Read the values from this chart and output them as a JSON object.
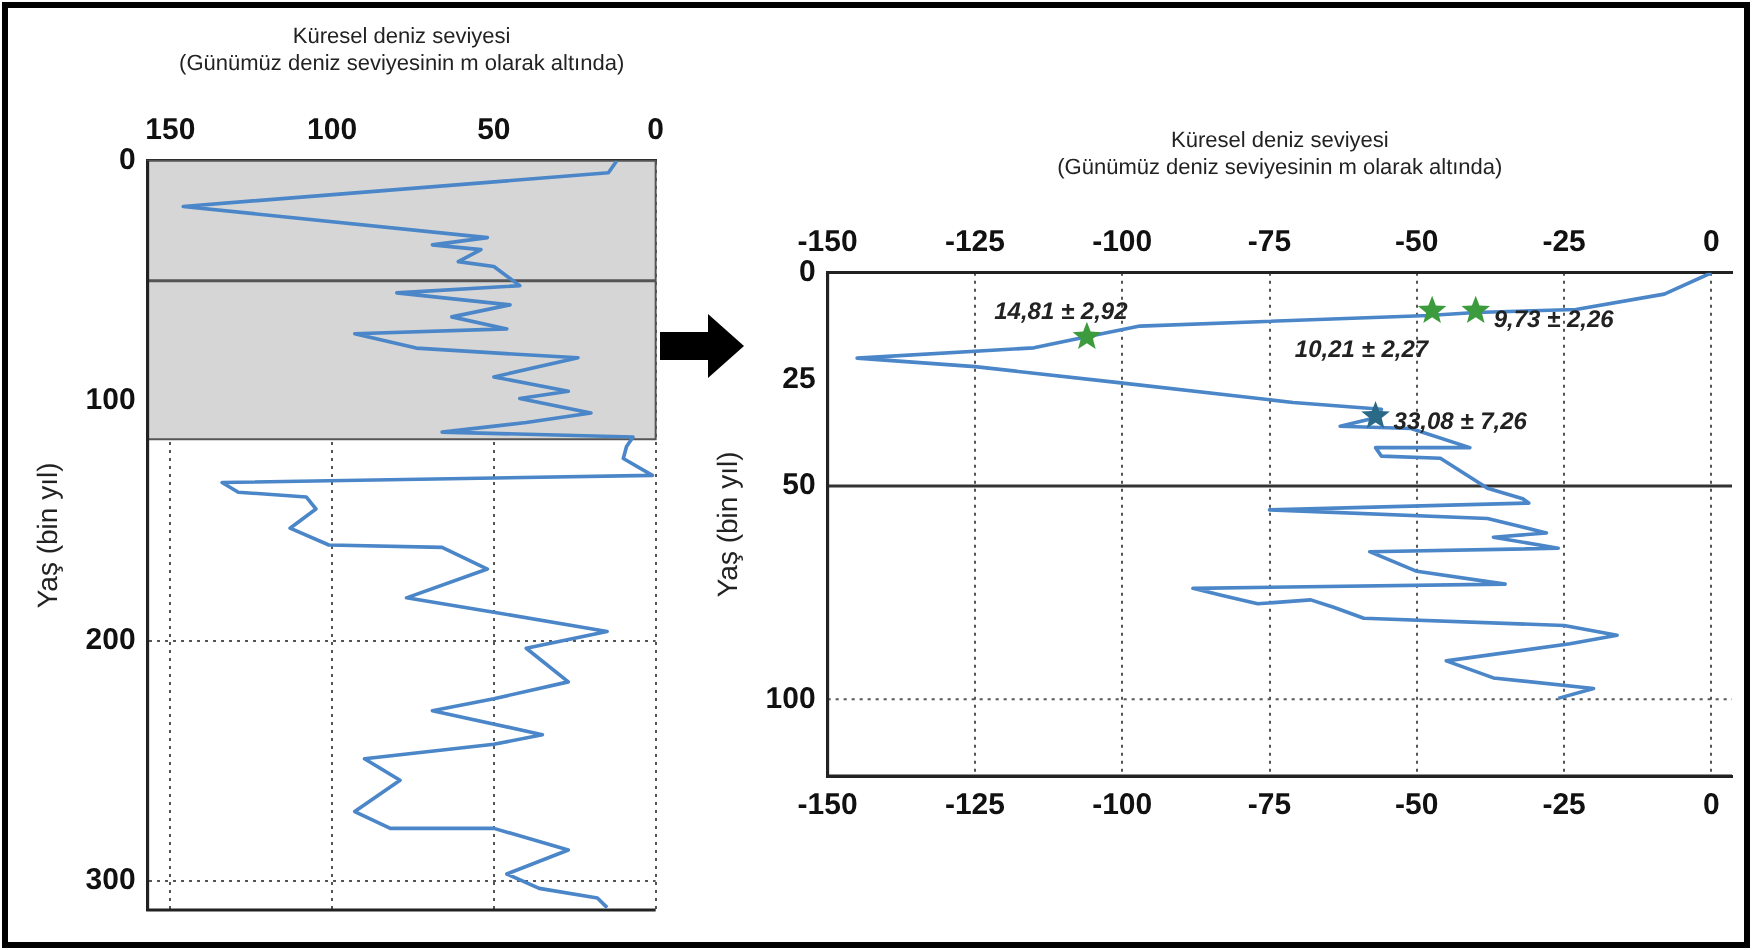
{
  "chart_data": [
    {
      "type": "line",
      "xlabel": "Küresel deniz seviyesi\n(Günümüz deniz seviyesinin m olarak altında)",
      "ylabel": "Yaş (bin yıl)",
      "xlim": [
        157,
        0
      ],
      "xticks": [
        150,
        100,
        50,
        0
      ],
      "ylim": [
        312,
        0
      ],
      "yticks": [
        0,
        100,
        200,
        300
      ],
      "grid": true,
      "marker": "none",
      "line_style": "solid",
      "series": [
        {
          "color": "#4a86c8",
          "x": [
            12,
            14.6,
            146,
            52,
            69,
            54,
            61,
            50,
            42,
            80,
            45,
            63,
            46,
            93,
            74,
            50,
            24,
            50,
            27,
            42,
            20,
            40,
            66,
            7,
            9,
            10,
            1,
            134,
            129,
            108,
            105,
            113,
            101,
            66,
            52,
            77,
            50,
            15,
            40,
            27,
            50,
            69,
            35,
            50,
            90,
            79,
            93,
            82,
            50,
            27,
            46,
            36,
            18,
            15
          ],
          "values": [
            0,
            5,
            19,
            32,
            35,
            37,
            42,
            44,
            52,
            55,
            60,
            65,
            70,
            72,
            78,
            80,
            82,
            90,
            96,
            99,
            105,
            109,
            113,
            115,
            119,
            124,
            131,
            134,
            138,
            140,
            145,
            153,
            160,
            161,
            170,
            182,
            188,
            196,
            203,
            217,
            224,
            229,
            239,
            243,
            249,
            258,
            271,
            278,
            278,
            287,
            297,
            303,
            307,
            311
          ]
        }
      ],
      "bands": [
        {
          "axis": "y",
          "from": 0,
          "to": 116,
          "color": "#d6d6d6"
        }
      ],
      "ref_lines": [
        {
          "axis": "y",
          "value": 50,
          "color": "#555555",
          "line_style": "solid"
        }
      ]
    },
    {
      "type": "line",
      "x2label": "Küresel deniz seviyesi\n(Günümüz deniz seviyesinin m olarak altında)",
      "ylabel": "Yaş (bin yıl)",
      "xlim": [
        -150,
        3.5
      ],
      "xticks": [
        -150,
        -125,
        -100,
        -75,
        -50,
        -25,
        0
      ],
      "x2lim": [
        -150,
        3.5
      ],
      "x2ticks": [
        -150,
        -125,
        -100,
        -75,
        -50,
        -25,
        0
      ],
      "ylim": [
        118,
        0
      ],
      "yticks": [
        0,
        25,
        50,
        100
      ],
      "grid": "x",
      "marker": "none",
      "line_style": "solid",
      "series": [
        {
          "color": "#4a86c8",
          "x": [
            0,
            -8,
            -23,
            -40,
            -48,
            -97,
            -106,
            -115,
            -145,
            -125,
            -101,
            -71,
            -56,
            -57,
            -63,
            -51,
            -41,
            -57,
            -56,
            -46,
            -38,
            -32,
            -31,
            -75,
            -38,
            -28,
            -37,
            -26,
            -58,
            -50,
            -35,
            -88,
            -83,
            -77,
            -68,
            -64,
            -59,
            -25,
            -16,
            -24,
            -45,
            -37,
            -20,
            -26
          ],
          "values": [
            0,
            5,
            8.6,
            9.3,
            10,
            12.5,
            15,
            17.6,
            20,
            22,
            25.7,
            30.4,
            32,
            34,
            36,
            36.5,
            41,
            41,
            43,
            43.5,
            50.5,
            53,
            54,
            55.6,
            57.6,
            61,
            62,
            64.6,
            65.4,
            70,
            73,
            74,
            75.7,
            77.6,
            76.7,
            78.5,
            81,
            82.7,
            85,
            87,
            91,
            95,
            97.5,
            99.8
          ]
        },
        {
          "type": "scatter",
          "marker": "star",
          "x": [
            -106,
            -47.4,
            -40,
            -57
          ],
          "values": [
            15,
            8.9,
            8.9,
            33.6
          ],
          "colors": [
            "#3c9b3c",
            "#3c9b3c",
            "#3c9b3c",
            "#2b6a86"
          ]
        }
      ],
      "ref_lines": [
        {
          "axis": "y",
          "value": 50,
          "color": "#333333",
          "line_style": "solid"
        },
        {
          "axis": "y",
          "value": 100,
          "color": "#555555",
          "line_style": "dotted"
        }
      ],
      "annotations": [
        {
          "text": "14,81 ± 2,92",
          "x": -106,
          "y": 15
        },
        {
          "text": "10,21 ± 2,27",
          "x": -47.4,
          "y": 8.9
        },
        {
          "text": "9,73 ± 2,26",
          "x": -40,
          "y": 8.9
        },
        {
          "text": "33,08 ± 7,26",
          "x": -57,
          "y": 33.6
        }
      ]
    }
  ]
}
